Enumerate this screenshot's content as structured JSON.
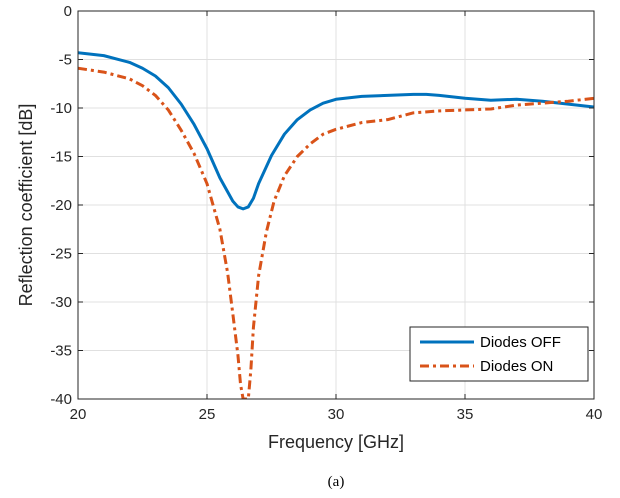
{
  "chart_data": {
    "type": "line",
    "caption": "(a)",
    "xlabel": "Frequency [GHz]",
    "ylabel": "Reflection coefficient [dB]",
    "xlim": [
      20,
      40
    ],
    "ylim": [
      -40,
      0
    ],
    "xticks": [
      "20",
      "25",
      "30",
      "35",
      "40"
    ],
    "yticks": [
      "0",
      "-5",
      "-10",
      "-15",
      "-20",
      "-25",
      "-30",
      "-35",
      "-40"
    ],
    "grid": true,
    "legend_position": "bottom-right",
    "series": [
      {
        "name": "Diodes OFF",
        "color": "#0072BD",
        "style": "solid",
        "x": [
          20,
          21,
          22,
          22.5,
          23,
          23.5,
          24,
          24.5,
          25,
          25.5,
          26,
          26.2,
          26.4,
          26.6,
          26.8,
          27,
          27.5,
          28,
          28.5,
          29,
          29.5,
          30,
          31,
          32,
          33,
          33.5,
          34,
          35,
          36,
          37,
          38,
          39,
          40
        ],
        "y": [
          -4.3,
          -4.6,
          -5.3,
          -5.9,
          -6.7,
          -7.9,
          -9.6,
          -11.7,
          -14.2,
          -17.2,
          -19.6,
          -20.2,
          -20.4,
          -20.2,
          -19.3,
          -17.8,
          -14.9,
          -12.7,
          -11.2,
          -10.2,
          -9.5,
          -9.1,
          -8.8,
          -8.7,
          -8.6,
          -8.6,
          -8.7,
          -9.0,
          -9.2,
          -9.1,
          -9.3,
          -9.6,
          -9.9
        ]
      },
      {
        "name": "Diodes ON",
        "color": "#D95319",
        "style": "dashdot",
        "x": [
          20,
          21,
          22,
          22.5,
          23,
          23.5,
          24,
          24.5,
          25,
          25.5,
          25.8,
          26,
          26.2,
          26.3,
          26.4,
          26.5,
          26.6,
          26.7,
          26.8,
          27,
          27.3,
          27.6,
          28,
          28.5,
          29,
          29.5,
          30,
          31,
          32,
          33,
          34,
          35,
          36,
          37,
          38,
          39,
          40
        ],
        "y": [
          -5.9,
          -6.3,
          -7.0,
          -7.7,
          -8.7,
          -10.2,
          -12.3,
          -14.7,
          -17.8,
          -22.5,
          -27,
          -31.2,
          -35.5,
          -38.5,
          -40,
          -40,
          -40,
          -37,
          -32.6,
          -27.3,
          -22.8,
          -19.6,
          -17.0,
          -15.0,
          -13.7,
          -12.7,
          -12.2,
          -11.5,
          -11.2,
          -10.5,
          -10.3,
          -10.2,
          -10.1,
          -9.7,
          -9.5,
          -9.3,
          -9.0
        ]
      }
    ]
  }
}
